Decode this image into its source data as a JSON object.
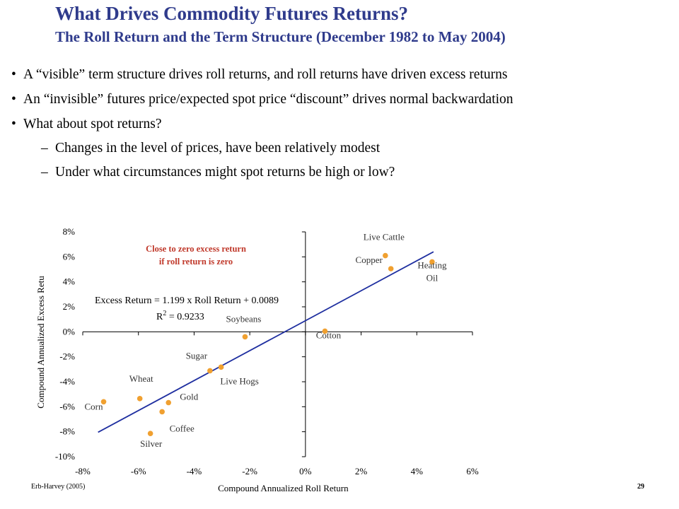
{
  "header": {
    "title": "What Drives Commodity Futures Returns?",
    "subtitle": "The Roll Return and the Term Structure (December 1982 to May 2004)"
  },
  "bullets": [
    {
      "level": 1,
      "marker": "•",
      "text": "A “visible” term structure drives roll returns, and roll returns have driven excess returns"
    },
    {
      "level": 1,
      "marker": "•",
      "text": "An “invisible” futures price/expected spot price “discount” drives normal backwardation"
    },
    {
      "level": 1,
      "marker": "•",
      "text": "What about spot returns?"
    },
    {
      "level": 2,
      "marker": "–",
      "text": "Changes in the  level of prices, have been relatively modest"
    },
    {
      "level": 2,
      "marker": "–",
      "text": "Under what circumstances might spot returns be high or low?"
    }
  ],
  "chart_data": {
    "type": "scatter",
    "xlabel": "Compound Annualized Roll Return",
    "ylabel": "Compound Annualized Excess Retu",
    "xlim": [
      -0.08,
      0.06
    ],
    "ylim": [
      -0.1,
      0.08
    ],
    "x_ticks": [
      -0.08,
      -0.06,
      -0.04,
      -0.02,
      0.0,
      0.02,
      0.04,
      0.06
    ],
    "x_tick_labels": [
      "-8%",
      "-6%",
      "-4%",
      "-2%",
      "0%",
      "2%",
      "4%",
      "6%"
    ],
    "y_ticks": [
      -0.1,
      -0.08,
      -0.06,
      -0.04,
      -0.02,
      0.0,
      0.02,
      0.04,
      0.06,
      0.08
    ],
    "y_tick_labels": [
      "-10%",
      "-8%",
      "-6%",
      "-4%",
      "-2%",
      "0%",
      "2%",
      "4%",
      "6%",
      "8%"
    ],
    "grid": false,
    "marker_color": "#f0a030",
    "line_color": "#1f2fa0",
    "points": [
      {
        "label": "Corn",
        "x": -0.0725,
        "y": -0.056
      },
      {
        "label": "Wheat",
        "x": -0.0595,
        "y": -0.0535
      },
      {
        "label": "Gold",
        "x": -0.0492,
        "y": -0.0567
      },
      {
        "label": "Coffee",
        "x": -0.0515,
        "y": -0.064
      },
      {
        "label": "Silver",
        "x": -0.0557,
        "y": -0.0814
      },
      {
        "label": "Sugar",
        "x": -0.0343,
        "y": -0.0312
      },
      {
        "label": "Live Hogs",
        "x": -0.0303,
        "y": -0.0283
      },
      {
        "label": "Soybeans",
        "x": -0.0217,
        "y": -0.004
      },
      {
        "label": "Cotton",
        "x": 0.007,
        "y": 0.0005
      },
      {
        "label": "Live Cattle",
        "x": 0.0287,
        "y": 0.061
      },
      {
        "label": "Copper",
        "x": 0.0307,
        "y": 0.0505
      },
      {
        "label": "Heating Oil",
        "x": 0.0455,
        "y": 0.056
      }
    ],
    "trendline": {
      "slope": 1.199,
      "intercept": 0.0089,
      "x_range": [
        -0.0745,
        0.046
      ]
    },
    "annotations": {
      "note_line1": "Close to zero excess return",
      "note_line2": "if roll return is zero",
      "note_color": "#c0392b",
      "equation": "Excess Return = 1.199 x Roll Return + 0.0089",
      "r2_label": "R",
      "r2_sup": "2",
      "r2_value": " = 0.9233"
    }
  },
  "footer": {
    "source": "Erb-Harvey (2005)",
    "page": "29"
  }
}
